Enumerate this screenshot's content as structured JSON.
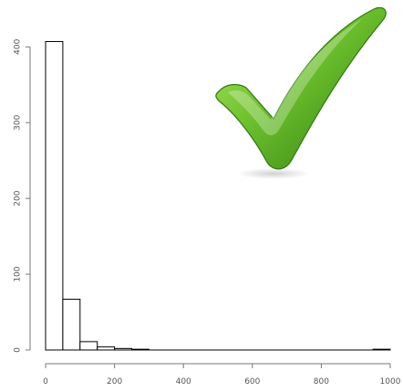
{
  "chart_data": {
    "type": "bar",
    "subtype": "histogram",
    "title": "",
    "xlabel": "",
    "ylabel": "",
    "bins": [
      {
        "start": 0,
        "end": 50,
        "count": 407
      },
      {
        "start": 50,
        "end": 100,
        "count": 67
      },
      {
        "start": 100,
        "end": 150,
        "count": 11
      },
      {
        "start": 150,
        "end": 200,
        "count": 4
      },
      {
        "start": 200,
        "end": 250,
        "count": 2
      },
      {
        "start": 250,
        "end": 300,
        "count": 1
      },
      {
        "start": 950,
        "end": 1000,
        "count": 1
      }
    ],
    "xlim": [
      0,
      1000
    ],
    "ylim": [
      0,
      410
    ],
    "xticks": [
      "0",
      "200",
      "400",
      "600",
      "800",
      "1000"
    ],
    "yticks": [
      "0",
      "100",
      "200",
      "300",
      "400"
    ],
    "xtick_values": [
      0,
      200,
      400,
      600,
      800,
      1000
    ],
    "ytick_values": [
      0,
      100,
      200,
      300,
      400
    ],
    "grid": false,
    "bar_fill": "#ffffff",
    "bar_stroke": "#000000"
  },
  "overlay": {
    "icon": "checkmark-icon",
    "colors": {
      "light": "#9edc4a",
      "mid": "#5aab22",
      "dark": "#2f7a10"
    }
  }
}
